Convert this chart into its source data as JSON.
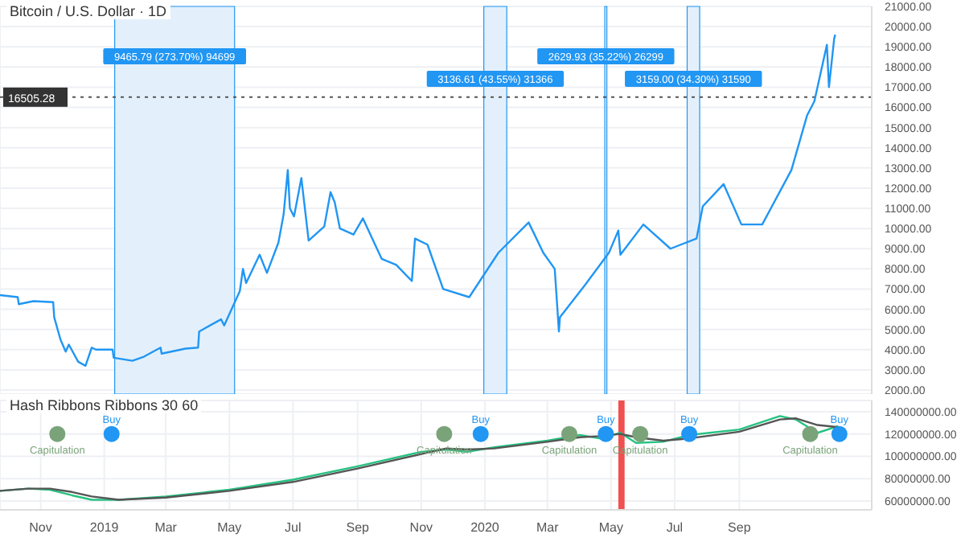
{
  "chart_data": [
    {
      "type": "line",
      "title": "Bitcoin / U.S. Dollar · 1D",
      "x": [
        "2018-09-23",
        "2018-10-10",
        "2018-10-11",
        "2018-10-25",
        "2018-11-13",
        "2018-11-14",
        "2018-11-20",
        "2018-11-25",
        "2018-11-28",
        "2018-12-07",
        "2018-12-14",
        "2018-12-20",
        "2018-12-24",
        "2019-01-09",
        "2019-01-10",
        "2019-01-28",
        "2019-02-08",
        "2019-02-24",
        "2019-02-25",
        "2019-03-20",
        "2019-04-01",
        "2019-04-02",
        "2019-04-23",
        "2019-04-26",
        "2019-05-11",
        "2019-05-14",
        "2019-05-17",
        "2019-05-30",
        "2019-06-06",
        "2019-06-17",
        "2019-06-22",
        "2019-06-26",
        "2019-06-28",
        "2019-07-02",
        "2019-07-09",
        "2019-07-16",
        "2019-07-31",
        "2019-08-06",
        "2019-08-10",
        "2019-08-15",
        "2019-08-28",
        "2019-09-06",
        "2019-09-24",
        "2019-10-08",
        "2019-10-23",
        "2019-10-26",
        "2019-11-07",
        "2019-11-22",
        "2019-12-17",
        "2020-01-14",
        "2020-02-12",
        "2020-02-26",
        "2020-03-08",
        "2020-03-12",
        "2020-03-13",
        "2020-04-06",
        "2020-04-29",
        "2020-05-08",
        "2020-05-10",
        "2020-06-01",
        "2020-06-27",
        "2020-07-22",
        "2020-07-28",
        "2020-08-17",
        "2020-09-03",
        "2020-09-23",
        "2020-10-21",
        "2020-11-05",
        "2020-11-12",
        "2020-11-24",
        "2020-11-26",
        "2020-12-01",
        "2020-12-02"
      ],
      "series": [
        {
          "color": "#2196f3",
          "values": [
            6700,
            6600,
            6250,
            6400,
            6350,
            5600,
            4500,
            3900,
            4250,
            3400,
            3200,
            4100,
            4000,
            4000,
            3600,
            3450,
            3650,
            4100,
            3800,
            4050,
            4100,
            4900,
            5500,
            5200,
            6900,
            8000,
            7300,
            8700,
            7800,
            9300,
            10700,
            12900,
            11000,
            10600,
            12500,
            9400,
            10100,
            11800,
            11300,
            10000,
            9700,
            10500,
            8500,
            8200,
            7400,
            9500,
            9200,
            7000,
            6600,
            8800,
            10300,
            8800,
            8000,
            4900,
            5600,
            7200,
            8800,
            9900,
            8700,
            10200,
            9000,
            9500,
            11100,
            12200,
            10200,
            10200,
            12900,
            15600,
            16300,
            19100,
            17000,
            19400,
            19600
          ]
        }
      ],
      "xlim": [
        "2018-09-23",
        "2021-01-06"
      ],
      "ylim": [
        1800,
        21000
      ],
      "yticks": [
        {
          "value": 2000,
          "label": "2000.00"
        },
        {
          "value": 3000,
          "label": "3000.00"
        },
        {
          "value": 4000,
          "label": "4000.00"
        },
        {
          "value": 5000,
          "label": "5000.00"
        },
        {
          "value": 6000,
          "label": "6000.00"
        },
        {
          "value": 7000,
          "label": "7000.00"
        },
        {
          "value": 8000,
          "label": "8000.00"
        },
        {
          "value": 9000,
          "label": "9000.00"
        },
        {
          "value": 10000,
          "label": "10000.00"
        },
        {
          "value": 11000,
          "label": "11000.00"
        },
        {
          "value": 12000,
          "label": "12000.00"
        },
        {
          "value": 13000,
          "label": "13000.00"
        },
        {
          "value": 14000,
          "label": "14000.00"
        },
        {
          "value": 15000,
          "label": "15000.00"
        },
        {
          "value": 16000,
          "label": "16000.00"
        },
        {
          "value": 17000,
          "label": "17000.00"
        },
        {
          "value": 18000,
          "label": "18000.00"
        },
        {
          "value": 19000,
          "label": "19000.00"
        },
        {
          "value": 20000,
          "label": "20000.00"
        },
        {
          "value": 21000,
          "label": "21000.00"
        }
      ],
      "ref_lines": [
        {
          "axis": "y",
          "value": 16505.28,
          "label": "16505.28",
          "color": "#555555",
          "line_style": "dotted"
        }
      ],
      "bands": [
        {
          "axis": "x",
          "from": "2019-01-11",
          "to": "2019-05-06",
          "label": "9465.79 (273.70%) 94699",
          "color": "#e3f0fc"
        },
        {
          "axis": "x",
          "from": "2019-12-31",
          "to": "2020-01-22",
          "label": "3136.61 (43.55%) 31366",
          "color": "#e3f0fc"
        },
        {
          "axis": "x",
          "from": "2020-04-25",
          "to": "2020-04-27",
          "label": "2629.93 (35.22%) 26299",
          "color": "#e3f0fc"
        },
        {
          "axis": "x",
          "from": "2020-07-13",
          "to": "2020-07-25",
          "label": "3159.00 (34.30%) 31590",
          "color": "#e3f0fc"
        }
      ],
      "grid": true,
      "tick_labels": "y",
      "line_style": "solid",
      "marker": "none"
    },
    {
      "type": "line",
      "title": "Hash Ribbons Ribbons 30 60",
      "x": [
        "2018-09-23",
        "2018-10-20",
        "2018-11-10",
        "2018-12-01",
        "2018-12-20",
        "2019-01-15",
        "2019-03-01",
        "2019-05-01",
        "2019-07-01",
        "2019-09-01",
        "2019-11-01",
        "2019-11-25",
        "2019-12-15",
        "2020-01-10",
        "2020-03-01",
        "2020-04-01",
        "2020-04-20",
        "2020-05-10",
        "2020-05-25",
        "2020-06-20",
        "2020-07-15",
        "2020-09-01",
        "2020-10-10",
        "2020-10-25",
        "2020-11-15",
        "2020-12-05"
      ],
      "series": [
        {
          "type": "scatter",
          "name": "Capitulation",
          "color": "#7aa37a",
          "marker": "circle",
          "x": [
            "2018-11-17",
            "2019-11-23",
            "2020-03-22",
            "2020-05-29",
            "2020-11-08"
          ],
          "values": [
            120000000,
            120000000,
            120000000,
            120000000,
            120000000
          ]
        },
        {
          "type": "scatter",
          "name": "Buy",
          "color": "#2196f3",
          "marker": "circle",
          "x": [
            "2019-01-08",
            "2019-12-28",
            "2020-04-26",
            "2020-07-15",
            "2020-12-06"
          ],
          "values": [
            120000000,
            120000000,
            120000000,
            120000000,
            120000000
          ]
        },
        {
          "color": "#26c281",
          "values": [
            69000000,
            71000000,
            70000000,
            65000000,
            61000000,
            61000000,
            64000000,
            70000000,
            79000000,
            91000000,
            104000000,
            106000000,
            104000000,
            108000000,
            114000000,
            119000000,
            116000000,
            121000000,
            112000000,
            113000000,
            119000000,
            124000000,
            136000000,
            133000000,
            121000000,
            127000000
          ]
        },
        {
          "color": "#555555",
          "values": [
            69000000,
            71000000,
            71000000,
            68000000,
            64000000,
            61000000,
            63000000,
            69000000,
            77000000,
            89000000,
            102000000,
            107000000,
            106000000,
            107000000,
            113000000,
            117000000,
            118000000,
            120000000,
            117000000,
            114000000,
            116000000,
            122000000,
            133000000,
            134000000,
            128000000,
            126000000
          ]
        }
      ],
      "xlim": [
        "2018-09-23",
        "2021-01-06"
      ],
      "xticks": [
        {
          "value": "2018-11-01",
          "label": "Nov"
        },
        {
          "value": "2019-01-01",
          "label": "2019"
        },
        {
          "value": "2019-03-01",
          "label": "Mar"
        },
        {
          "value": "2019-05-01",
          "label": "May"
        },
        {
          "value": "2019-07-01",
          "label": "Jul"
        },
        {
          "value": "2019-09-01",
          "label": "Sep"
        },
        {
          "value": "2019-11-01",
          "label": "Nov"
        },
        {
          "value": "2020-01-01",
          "label": "2020"
        },
        {
          "value": "2020-03-01",
          "label": "Mar"
        },
        {
          "value": "2020-05-01",
          "label": "May"
        },
        {
          "value": "2020-07-01",
          "label": "Jul"
        },
        {
          "value": "2020-09-01",
          "label": "Sep"
        }
      ],
      "ylim": [
        52000000,
        150000000
      ],
      "yticks": [
        {
          "value": 60000000,
          "label": "60000000.00"
        },
        {
          "value": 80000000,
          "label": "80000000.00"
        },
        {
          "value": 100000000,
          "label": "100000000.00"
        },
        {
          "value": 120000000,
          "label": "120000000.00"
        },
        {
          "value": 140000000,
          "label": "140000000.00"
        }
      ],
      "bands": [
        {
          "axis": "x",
          "from": "2020-05-08",
          "to": "2020-05-14",
          "color": "#f05050"
        }
      ],
      "grid": true,
      "line_style": "solid",
      "marker": "none"
    }
  ]
}
